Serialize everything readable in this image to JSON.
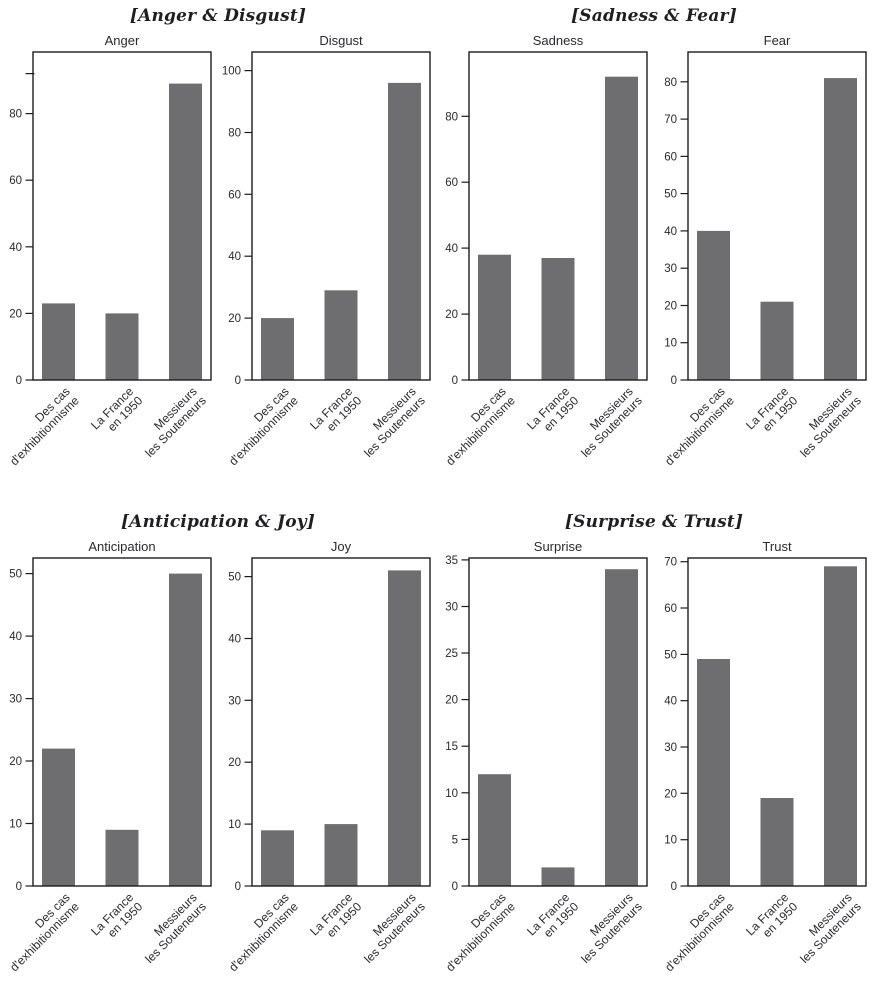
{
  "figure": {
    "group_titles": [
      "[Anger & Disgust]",
      "[Sadness & Fear]",
      "[Anticipation & Joy]",
      "[Surprise & Trust]"
    ],
    "category_lines": [
      [
        "Des cas",
        "d'exhibitionnisme"
      ],
      [
        "La France",
        "en 1950"
      ],
      [
        "Messieurs",
        "les Souteneurs"
      ]
    ],
    "style": {
      "bar_color": "#6e6e71",
      "axis_color": "#1c1c1c",
      "text_color": "#2a2a2e",
      "background": "#ffffff"
    }
  },
  "chart_data": [
    {
      "type": "bar",
      "group": "[Anger & Disgust]",
      "title": "Anger",
      "categories": [
        "Des cas d'exhibitionnisme",
        "La France en 1950",
        "Messieurs les Souteneurs"
      ],
      "values": [
        23,
        20,
        89
      ],
      "yticks": [
        0,
        20,
        40,
        60,
        80
      ],
      "unlabeled_ticks": [
        92
      ],
      "ylim": [
        0,
        98.5
      ],
      "xlabel": "",
      "ylabel": "",
      "grid": false,
      "legend": false
    },
    {
      "type": "bar",
      "group": "[Anger & Disgust]",
      "title": "Disgust",
      "categories": [
        "Des cas d'exhibitionnisme",
        "La France en 1950",
        "Messieurs les Souteneurs"
      ],
      "values": [
        20,
        29,
        96
      ],
      "yticks": [
        0,
        20,
        40,
        60,
        80,
        100
      ],
      "ylim": [
        0,
        106
      ],
      "xlabel": "",
      "ylabel": "",
      "grid": false,
      "legend": false
    },
    {
      "type": "bar",
      "group": "[Sadness & Fear]",
      "title": "Sadness",
      "categories": [
        "Des cas d'exhibitionnisme",
        "La France en 1950",
        "Messieurs les Souteneurs"
      ],
      "values": [
        38,
        37,
        92
      ],
      "yticks": [
        0,
        20,
        40,
        60,
        80
      ],
      "ylim": [
        0,
        99.5
      ],
      "xlabel": "",
      "ylabel": "",
      "grid": false,
      "legend": false
    },
    {
      "type": "bar",
      "group": "[Sadness & Fear]",
      "title": "Fear",
      "categories": [
        "Des cas d'exhibitionnisme",
        "La France en 1950",
        "Messieurs les Souteneurs"
      ],
      "values": [
        40,
        21,
        81
      ],
      "yticks": [
        0,
        10,
        20,
        30,
        40,
        50,
        60,
        70,
        80
      ],
      "ylim": [
        0,
        88
      ],
      "xlabel": "",
      "ylabel": "",
      "grid": false,
      "legend": false
    },
    {
      "type": "bar",
      "group": "[Anticipation & Joy]",
      "title": "Anticipation",
      "categories": [
        "Des cas d'exhibitionnisme",
        "La France en 1950",
        "Messieurs les Souteneurs"
      ],
      "values": [
        22,
        9,
        50
      ],
      "yticks": [
        0,
        10,
        20,
        30,
        40,
        50
      ],
      "ylim": [
        0,
        52.5
      ],
      "xlabel": "",
      "ylabel": "",
      "grid": false,
      "legend": false
    },
    {
      "type": "bar",
      "group": "[Anticipation & Joy]",
      "title": "Joy",
      "categories": [
        "Des cas d'exhibitionnisme",
        "La France en 1950",
        "Messieurs les Souteneurs"
      ],
      "values": [
        9,
        10,
        51
      ],
      "yticks": [
        0,
        10,
        20,
        30,
        40,
        50
      ],
      "ylim": [
        0,
        53
      ],
      "xlabel": "",
      "ylabel": "",
      "grid": false,
      "legend": false
    },
    {
      "type": "bar",
      "group": "[Surprise & Trust]",
      "title": "Surprise",
      "categories": [
        "Des cas d'exhibitionnisme",
        "La France en 1950",
        "Messieurs les Souteneurs"
      ],
      "values": [
        12,
        2,
        34
      ],
      "yticks": [
        0,
        5,
        10,
        15,
        20,
        25,
        30,
        35
      ],
      "ylim": [
        0,
        35.2
      ],
      "xlabel": "",
      "ylabel": "",
      "grid": false,
      "legend": false
    },
    {
      "type": "bar",
      "group": "[Surprise & Trust]",
      "title": "Trust",
      "categories": [
        "Des cas d'exhibitionnisme",
        "La France en 1950",
        "Messieurs les Souteneurs"
      ],
      "values": [
        49,
        19,
        69
      ],
      "yticks": [
        0,
        10,
        20,
        30,
        40,
        50,
        60,
        70
      ],
      "ylim": [
        0,
        70.8
      ],
      "xlabel": "",
      "ylabel": "",
      "grid": false,
      "legend": false
    }
  ]
}
